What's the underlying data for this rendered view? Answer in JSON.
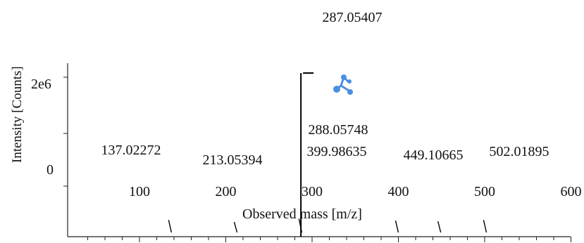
{
  "chart_data": {
    "type": "bar",
    "subtype": "mass-spectrum-stick-plot",
    "title": "",
    "xlabel": "Observed mass [m/z]",
    "ylabel": "Intensity [Counts]",
    "xlim": [
      35,
      610
    ],
    "x_ticks": [
      100,
      200,
      300,
      400,
      500,
      600
    ],
    "y_tick_labels": [
      "2e6",
      "0"
    ],
    "grid": false,
    "legend": "none",
    "color": "#000000",
    "peaks": [
      {
        "mz": 137.02272,
        "label": "137.02272",
        "intensity": 0.04
      },
      {
        "mz": 213.05394,
        "label": "213.05394",
        "intensity": 0.01
      },
      {
        "mz": 287.05407,
        "label": "287.05407",
        "intensity": 1.0
      },
      {
        "mz": 288.05748,
        "label": "288.05748",
        "intensity": 0.06
      },
      {
        "mz": 399.98635,
        "label": "399.98635",
        "intensity": 0.03
      },
      {
        "mz": 449.10665,
        "label": "449.10665",
        "intensity": 0.02
      },
      {
        "mz": 502.01895,
        "label": "502.01895",
        "intensity": 0.04
      }
    ]
  },
  "icons": {
    "overlay": "molecule-icon",
    "overlay_color": "#4a90e2"
  }
}
